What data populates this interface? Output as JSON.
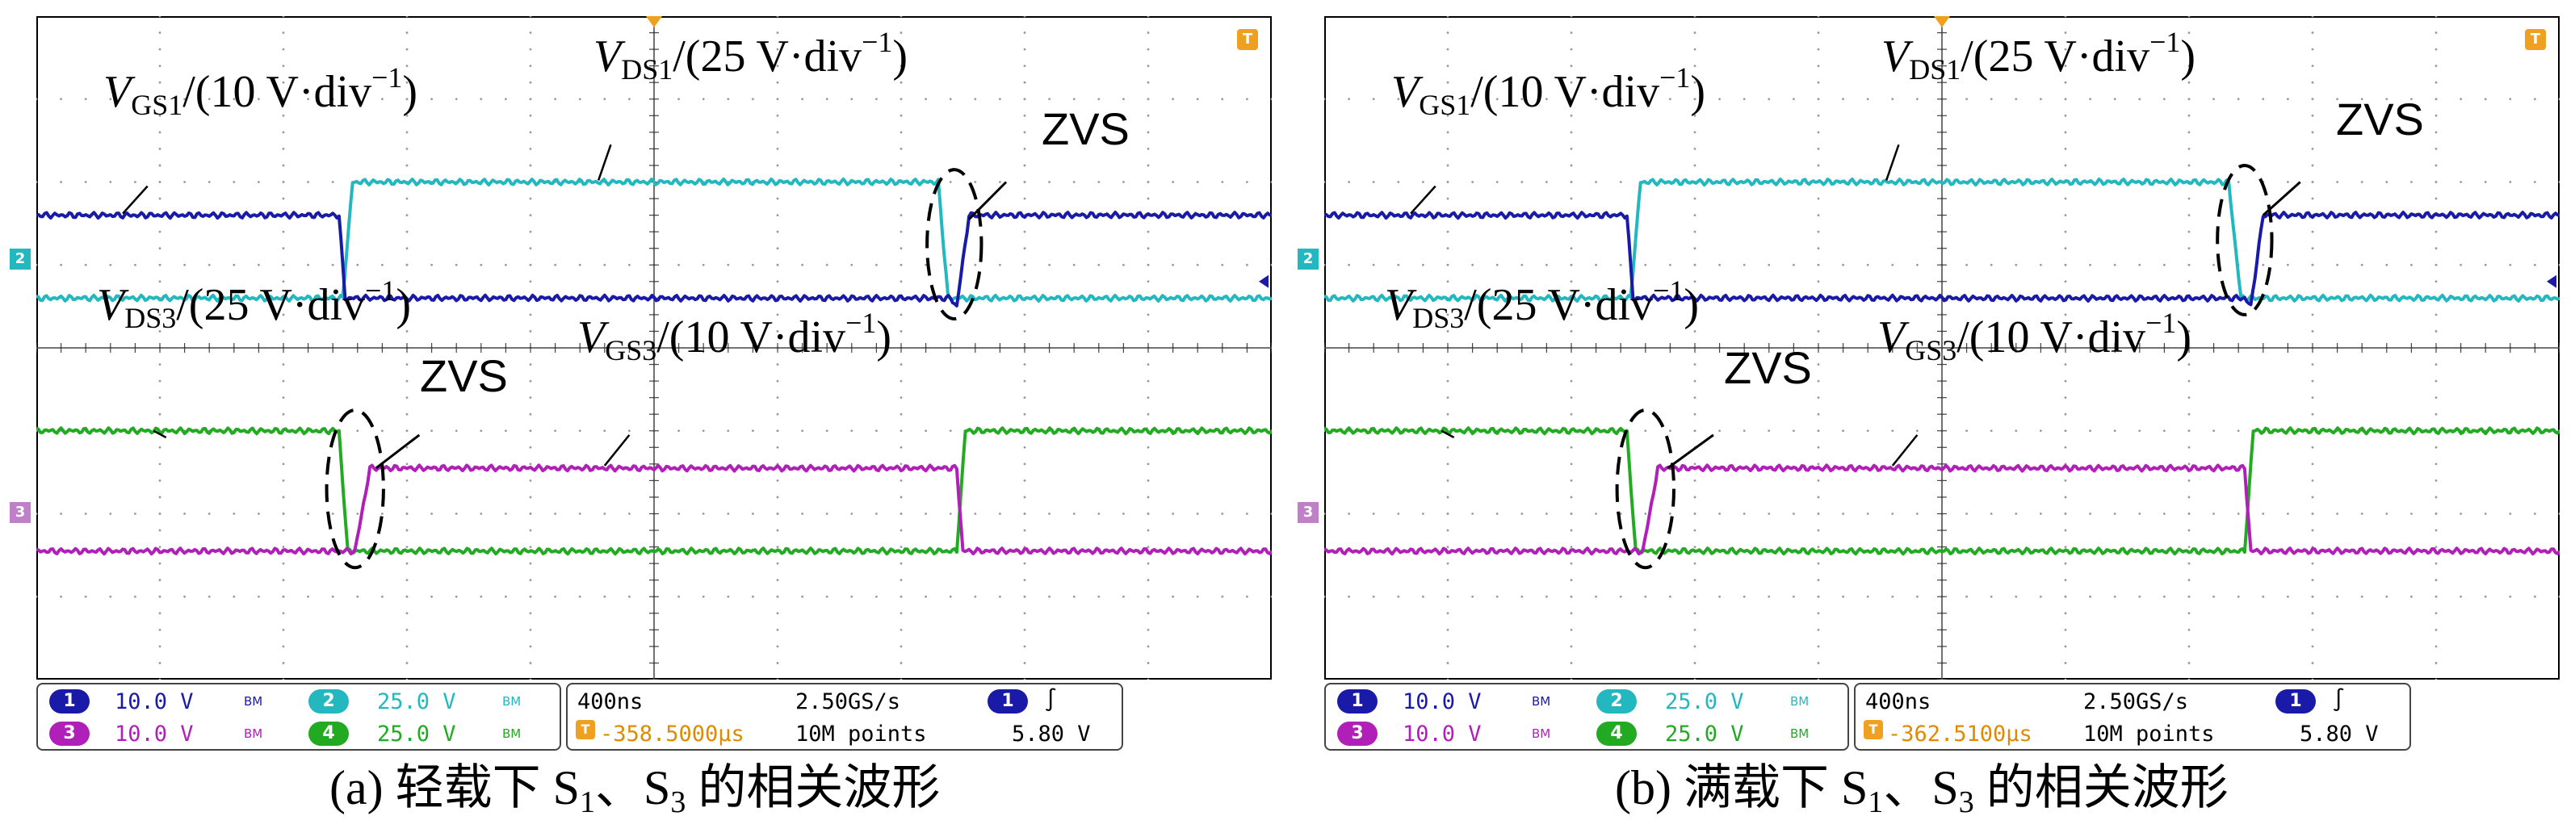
{
  "chart_data": [
    {
      "type": "line",
      "title": "",
      "xlabel": "",
      "ylabel": "",
      "grid": true,
      "x_divisions": 10,
      "y_divisions": 8,
      "time_per_div": "400ns",
      "series": [
        {
          "name": "V_GS1",
          "label_main": "V",
          "label_sub": "GS1",
          "label_scale": "/(10 V·div",
          "color": "#1a1aa8",
          "points": [
            [
              0,
              5.6
            ],
            [
              2.45,
              5.6
            ],
            [
              2.5,
              4.6
            ],
            [
              7.4,
              4.6
            ],
            [
              7.45,
              4.5
            ],
            [
              7.55,
              5.6
            ],
            [
              10,
              5.6
            ]
          ]
        },
        {
          "name": "V_DS1",
          "label_main": "V",
          "label_sub": "DS1",
          "label_scale": "/(25 V·div",
          "color": "#23b8c0",
          "points": [
            [
              0,
              4.6
            ],
            [
              2.48,
              4.6
            ],
            [
              2.56,
              6.0
            ],
            [
              7.3,
              6.0
            ],
            [
              7.38,
              4.6
            ],
            [
              10,
              4.6
            ]
          ]
        },
        {
          "name": "V_DS3",
          "label_main": "V",
          "label_sub": "DS3",
          "label_scale": "/(25 V·div",
          "color": "#22aa22",
          "points": [
            [
              0,
              3.0
            ],
            [
              2.45,
              3.0
            ],
            [
              2.52,
              1.55
            ],
            [
              7.45,
              1.55
            ],
            [
              7.52,
              3.0
            ],
            [
              10,
              3.0
            ]
          ]
        },
        {
          "name": "V_GS3",
          "label_main": "V",
          "label_sub": "GS3",
          "label_scale": "/(10 V·div",
          "color": "#b020b8",
          "points": [
            [
              0,
              1.55
            ],
            [
              2.58,
              1.55
            ],
            [
              2.7,
              2.55
            ],
            [
              7.45,
              2.55
            ],
            [
              7.5,
              1.55
            ],
            [
              10,
              1.55
            ]
          ]
        }
      ],
      "annotations": [
        {
          "text": "ZVS"
        },
        {
          "text": "ZVS"
        }
      ],
      "channels": [
        {
          "num": "1",
          "scale": "10.0 V",
          "bw": "BM",
          "color": "#1a1aa8"
        },
        {
          "num": "2",
          "scale": "25.0 V",
          "bw": "BM",
          "color": "#23b8c0"
        },
        {
          "num": "3",
          "scale": "10.0 V",
          "bw": "BM",
          "color": "#b020b8"
        },
        {
          "num": "4",
          "scale": "25.0 V",
          "bw": "BM",
          "color": "#22aa22"
        }
      ],
      "timebase": "400ns",
      "trigger_position": "-358.5000μs",
      "sample_rate": "2.50GS/s",
      "record_length": "10M points",
      "trigger_channel": "1",
      "trigger_level": "5.80 V",
      "trigger_slope_symbol": "∫",
      "caption_prefix": "(a) 轻载下 S",
      "caption_s1_sub": "1",
      "caption_mid": "、S",
      "caption_s3_sub": "3",
      "caption_suffix": " 的相关波形"
    },
    {
      "type": "line",
      "title": "",
      "xlabel": "",
      "ylabel": "",
      "grid": true,
      "x_divisions": 10,
      "y_divisions": 8,
      "time_per_div": "400ns",
      "series": [
        {
          "name": "V_GS1",
          "label_main": "V",
          "label_sub": "GS1",
          "label_scale": "/(10 V·div",
          "color": "#1a1aa8",
          "points": [
            [
              0,
              5.6
            ],
            [
              2.45,
              5.6
            ],
            [
              2.5,
              4.6
            ],
            [
              7.45,
              4.6
            ],
            [
              7.5,
              4.5
            ],
            [
              7.6,
              5.6
            ],
            [
              10,
              5.6
            ]
          ]
        },
        {
          "name": "V_DS1",
          "label_main": "V",
          "label_sub": "DS1",
          "label_scale": "/(25 V·div",
          "color": "#23b8c0",
          "points": [
            [
              0,
              4.6
            ],
            [
              2.48,
              4.6
            ],
            [
              2.56,
              6.0
            ],
            [
              7.32,
              6.0
            ],
            [
              7.42,
              4.6
            ],
            [
              10,
              4.6
            ]
          ]
        },
        {
          "name": "V_DS3",
          "label_main": "V",
          "label_sub": "DS3",
          "label_scale": "/(25 V·div",
          "color": "#22aa22",
          "points": [
            [
              0,
              3.0
            ],
            [
              2.45,
              3.0
            ],
            [
              2.52,
              1.55
            ],
            [
              7.45,
              1.55
            ],
            [
              7.52,
              3.0
            ],
            [
              10,
              3.0
            ]
          ]
        },
        {
          "name": "V_GS3",
          "label_main": "V",
          "label_sub": "GS3",
          "label_scale": "/(10 V·div",
          "color": "#b020b8",
          "points": [
            [
              0,
              1.55
            ],
            [
              2.58,
              1.55
            ],
            [
              2.7,
              2.55
            ],
            [
              7.45,
              2.55
            ],
            [
              7.5,
              1.55
            ],
            [
              10,
              1.55
            ]
          ]
        }
      ],
      "annotations": [
        {
          "text": "ZVS"
        },
        {
          "text": "ZVS"
        }
      ],
      "channels": [
        {
          "num": "1",
          "scale": "10.0 V",
          "bw": "BM",
          "color": "#1a1aa8"
        },
        {
          "num": "2",
          "scale": "25.0 V",
          "bw": "BM",
          "color": "#23b8c0"
        },
        {
          "num": "3",
          "scale": "10.0 V",
          "bw": "BM",
          "color": "#b020b8"
        },
        {
          "num": "4",
          "scale": "25.0 V",
          "bw": "BM",
          "color": "#22aa22"
        }
      ],
      "timebase": "400ns",
      "trigger_position": "-362.5100μs",
      "sample_rate": "2.50GS/s",
      "record_length": "10M points",
      "trigger_channel": "1",
      "trigger_level": "5.80 V",
      "trigger_slope_symbol": "∫",
      "caption_prefix": "(b) 满载下 S",
      "caption_s1_sub": "1",
      "caption_mid": "、S",
      "caption_s3_sub": "3",
      "caption_suffix": " 的相关波形"
    }
  ],
  "markers": {
    "ch2": "2",
    "ch3": "3",
    "trigger": "T",
    "exp": "−1",
    "close_paren": ")"
  }
}
